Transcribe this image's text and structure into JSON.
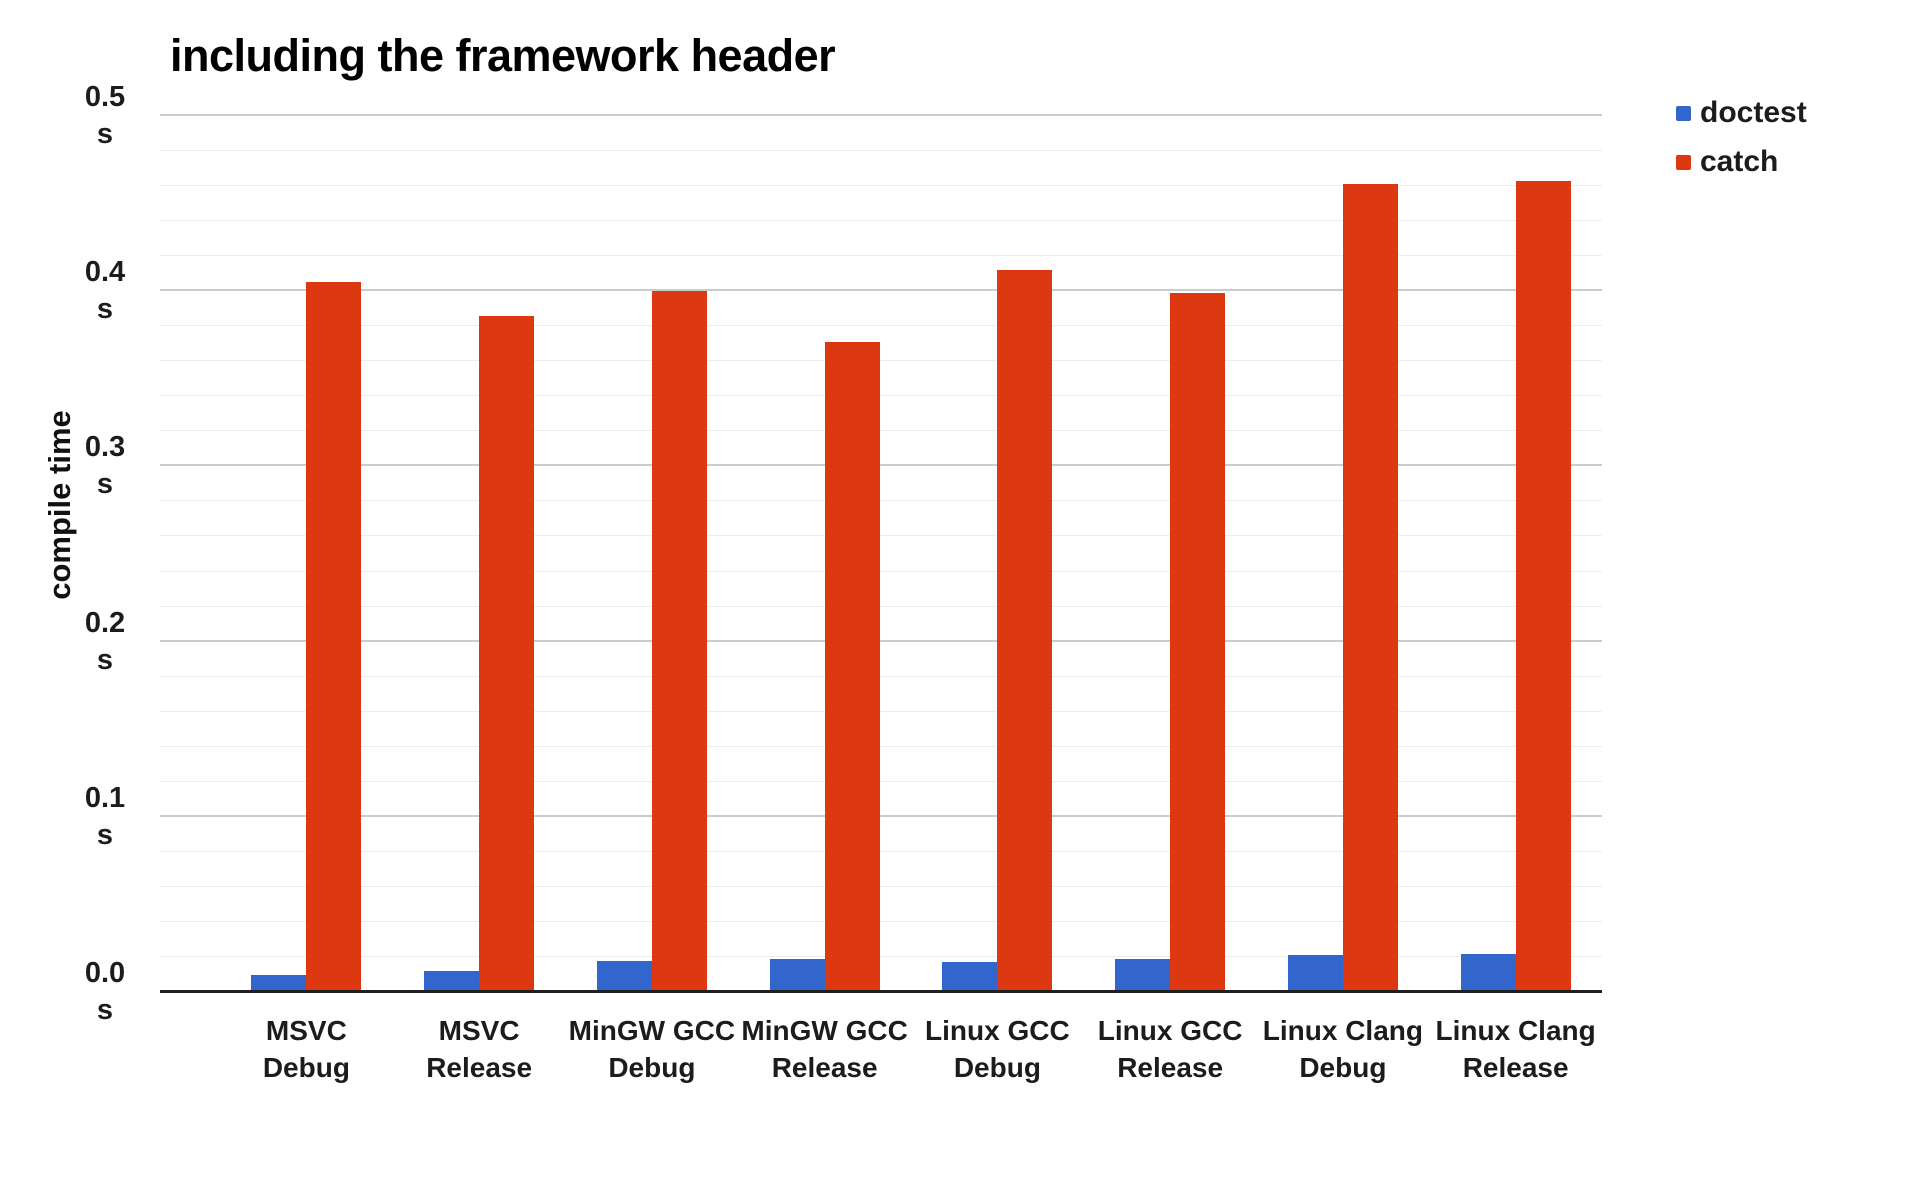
{
  "title": "including the framework header",
  "legend": {
    "position": "right",
    "items": [
      {
        "label": "doctest",
        "color": "#3366CC"
      },
      {
        "label": "catch",
        "color": "#DC3912"
      }
    ]
  },
  "y_axis": {
    "title": "compile time",
    "unit": "s",
    "tick_labels": [
      "0.0",
      "0.1",
      "0.2",
      "0.3",
      "0.4",
      "0.5"
    ]
  },
  "chart_data": {
    "type": "bar",
    "title": "including the framework header",
    "xlabel": "",
    "ylabel": "compile time",
    "unit": "s",
    "ylim": [
      0,
      0.5
    ],
    "major_tick_step": 0.1,
    "minor_tick_step": 0.02,
    "grid": true,
    "legend_position": "right",
    "categories": [
      [
        "MSVC",
        "Debug"
      ],
      [
        "MSVC",
        "Release"
      ],
      [
        "MinGW GCC",
        "Debug"
      ],
      [
        "MinGW GCC",
        "Release"
      ],
      [
        "Linux GCC",
        "Debug"
      ],
      [
        "Linux GCC",
        "Release"
      ],
      [
        "Linux Clang",
        "Debug"
      ],
      [
        "Linux Clang",
        "Release"
      ]
    ],
    "series": [
      {
        "name": "doctest",
        "color": "#3366CC",
        "values": [
          0.01,
          0.012,
          0.018,
          0.019,
          0.017,
          0.019,
          0.021,
          0.022
        ]
      },
      {
        "name": "catch",
        "color": "#DC3912",
        "values": [
          0.405,
          0.386,
          0.4,
          0.371,
          0.412,
          0.399,
          0.461,
          0.463
        ]
      }
    ]
  }
}
